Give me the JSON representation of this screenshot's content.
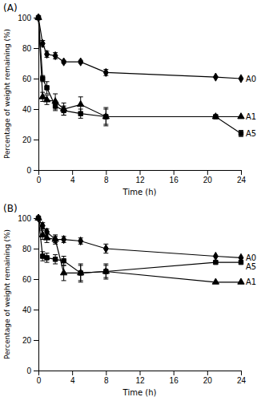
{
  "chart_data": [
    {
      "type": "line",
      "title": "(A)",
      "x_label": "Time (h)",
      "y_label": "Percentage of weight remaining (%)",
      "x": [
        0,
        0.5,
        1,
        2,
        3,
        5,
        8,
        21,
        24
      ],
      "xlim": [
        0,
        24
      ],
      "ylim": [
        0,
        100
      ],
      "xticks": [
        0,
        4,
        8,
        12,
        16,
        20,
        24
      ],
      "yticks": [
        0,
        20,
        40,
        60,
        80,
        100
      ],
      "grid": false,
      "color": "#000000",
      "series": [
        {
          "name": "A0",
          "marker": "diamond",
          "values": [
            100,
            83,
            76,
            75,
            71,
            71,
            64,
            61,
            60
          ],
          "errors": [
            0,
            2,
            2,
            2,
            1,
            1,
            2,
            0,
            0
          ]
        },
        {
          "name": "A1",
          "marker": "triangle",
          "values": [
            100,
            48,
            46,
            45,
            40,
            43,
            35,
            35,
            35
          ],
          "errors": [
            0,
            3,
            3,
            5,
            4,
            5,
            6,
            0,
            0
          ]
        },
        {
          "name": "A5",
          "marker": "square",
          "values": [
            100,
            60,
            54,
            42,
            39,
            37,
            35,
            35,
            24
          ],
          "errors": [
            0,
            2,
            4,
            3,
            3,
            3,
            5,
            0,
            2
          ]
        }
      ]
    },
    {
      "type": "line",
      "title": "(B)",
      "x_label": "Time (h)",
      "y_label": "Percentage of weight remaining (%)",
      "x": [
        0,
        0.5,
        1,
        2,
        3,
        5,
        8,
        21,
        24
      ],
      "xlim": [
        0,
        24
      ],
      "ylim": [
        0,
        100
      ],
      "xticks": [
        0,
        4,
        8,
        12,
        16,
        20,
        24
      ],
      "yticks": [
        0,
        20,
        40,
        60,
        80,
        100
      ],
      "grid": false,
      "color": "#000000",
      "series": [
        {
          "name": "A0",
          "marker": "diamond",
          "values": [
            100,
            95,
            91,
            86,
            86,
            85,
            80,
            75,
            74
          ],
          "errors": [
            0,
            2,
            2,
            2,
            2,
            2,
            3,
            0,
            0
          ]
        },
        {
          "name": "A1",
          "marker": "triangle",
          "values": [
            100,
            89,
            87,
            86,
            64,
            64,
            65,
            58,
            58
          ],
          "errors": [
            0,
            3,
            3,
            3,
            5,
            6,
            5,
            0,
            0
          ]
        },
        {
          "name": "A5",
          "marker": "square",
          "values": [
            100,
            75,
            74,
            73,
            72,
            64,
            65,
            71,
            71
          ],
          "errors": [
            0,
            3,
            3,
            3,
            3,
            5,
            4,
            0,
            0
          ]
        }
      ]
    }
  ]
}
